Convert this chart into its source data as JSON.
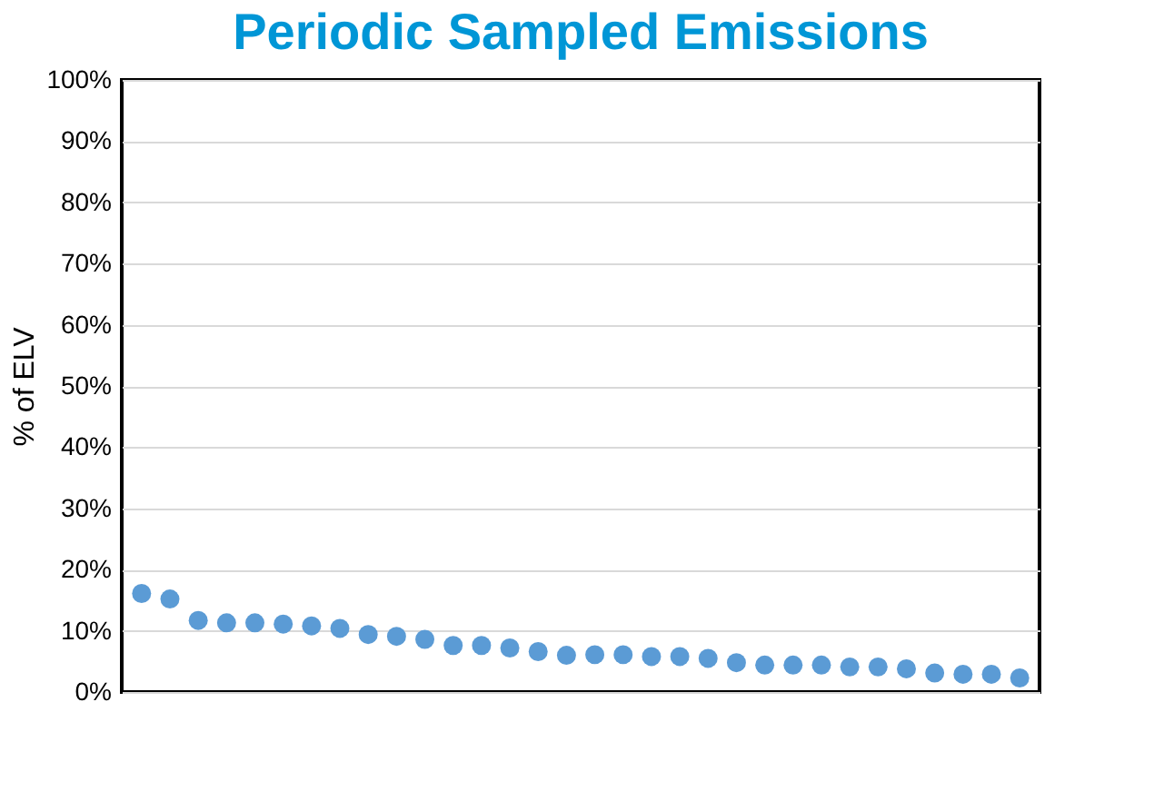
{
  "chart_data": {
    "type": "scatter",
    "title": "Periodic Sampled Emissions",
    "ylabel": "% of ELV",
    "categories": [
      null,
      null,
      null,
      null,
      null,
      null,
      null,
      null,
      null,
      null,
      null,
      null,
      null,
      null,
      null,
      null,
      null,
      null,
      null,
      null,
      null,
      null,
      null,
      null,
      null,
      null,
      null,
      null,
      null,
      null,
      null,
      null
    ],
    "series": [
      {
        "color": "#5b9bd5",
        "values": [
          16.1,
          15.2,
          11.7,
          11.3,
          11.3,
          11.1,
          10.8,
          10.4,
          9.4,
          9.1,
          8.6,
          7.6,
          7.6,
          7.2,
          6.6,
          6.0,
          6.1,
          6.1,
          5.8,
          5.8,
          5.5,
          4.8,
          4.4,
          4.4,
          4.4,
          4.1,
          4.1,
          3.8,
          3.1,
          2.9,
          2.9,
          2.3
        ]
      }
    ],
    "ylim": [
      0,
      100
    ],
    "yticks": [
      {
        "value": 0,
        "label": "0%"
      },
      {
        "value": 10,
        "label": "10%"
      },
      {
        "value": 20,
        "label": "20%"
      },
      {
        "value": 30,
        "label": "30%"
      },
      {
        "value": 40,
        "label": "40%"
      },
      {
        "value": 50,
        "label": "50%"
      },
      {
        "value": 60,
        "label": "60%"
      },
      {
        "value": 70,
        "label": "70%"
      },
      {
        "value": 80,
        "label": "80%"
      },
      {
        "value": 90,
        "label": "90%"
      },
      {
        "value": 100,
        "label": "100%"
      }
    ],
    "grid": "y",
    "legend": false,
    "marker": "circle",
    "tick_labels": "y"
  }
}
